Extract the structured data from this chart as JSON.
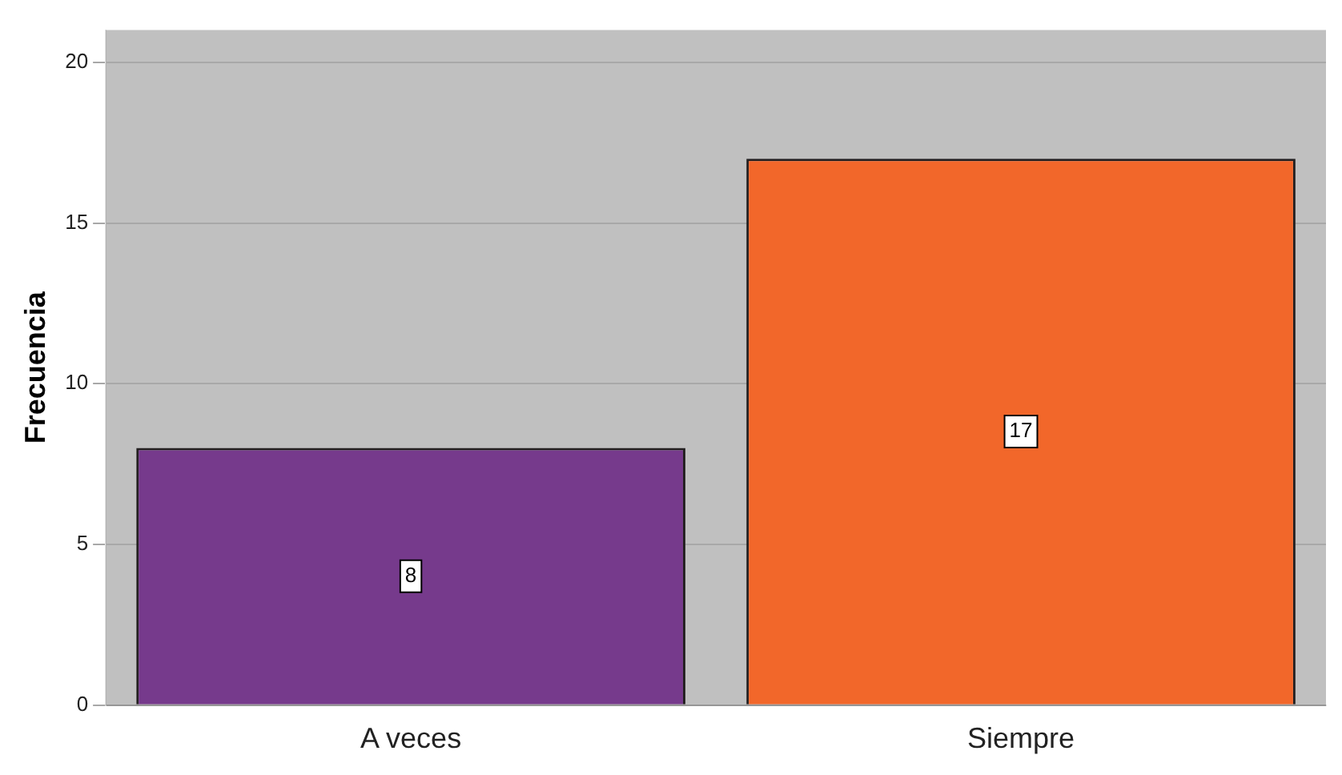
{
  "chart_data": {
    "type": "bar",
    "ylabel": "Frecuencia",
    "categories": [
      "A veces",
      "Siempre"
    ],
    "series": [
      {
        "colors": [
          "#763a8c",
          "#f2672a"
        ],
        "values": [
          8,
          17
        ]
      }
    ],
    "ylim": [
      0,
      21
    ],
    "yticks": [
      0,
      5,
      10,
      15,
      20
    ],
    "grid": "y",
    "data_labels": true,
    "legend": false
  }
}
